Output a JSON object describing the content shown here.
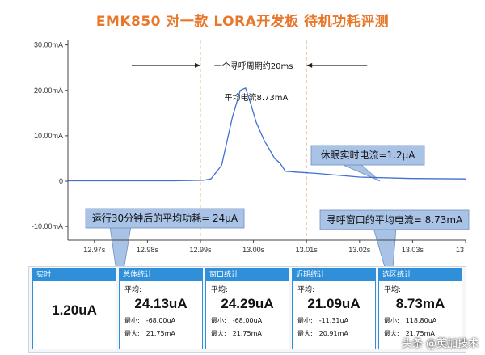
{
  "title": "EMK850 对一款 LORA开发板 待机功耗评测",
  "chart_data": {
    "type": "line",
    "title": "EMK850 对一款 LORA开发板 待机功耗评测",
    "xlabel": "",
    "ylabel": "",
    "xlim": [
      12.965,
      13.04
    ],
    "ylim": [
      -13,
      31
    ],
    "yticks": [
      30,
      20,
      10,
      0,
      -10
    ],
    "ytick_labels": [
      "30.00mA",
      "20.00mA",
      "10.00mA",
      "0",
      "-10.00mA"
    ],
    "xticks": [
      12.97,
      12.98,
      12.99,
      13.0,
      13.01,
      13.02,
      13.03,
      13.04
    ],
    "xtick_labels": [
      "12.97s",
      "12.98s",
      "12.99s",
      "13.00s",
      "13.01s",
      "13.02s",
      "13.03s",
      "13"
    ],
    "grid": false,
    "series": [
      {
        "name": "",
        "x": [
          12.965,
          12.975,
          12.985,
          12.9905,
          12.992,
          12.994,
          12.996,
          12.9975,
          12.9985,
          12.9995,
          13.0005,
          13.002,
          13.004,
          13.005,
          13.006,
          13.008,
          13.012,
          13.02,
          13.03,
          13.04
        ],
        "y": [
          0.1,
          0.1,
          0.1,
          0.2,
          0.5,
          3.5,
          14,
          20,
          20.5,
          17,
          13,
          9,
          5,
          4,
          2.2,
          2.0,
          1.7,
          0.9,
          0.6,
          0.5
        ]
      }
    ],
    "annotations": [
      {
        "text": "一个寻呼周期约20ms",
        "type": "span",
        "x": [
          12.99,
          13.01
        ]
      },
      {
        "text": "平均电流8.73mA",
        "type": "label",
        "x": 12.9945,
        "y": 17.8
      }
    ],
    "reference_lines": [
      12.99,
      13.01
    ]
  },
  "callouts": {
    "sleep": "休眠实时电流=1.2µA",
    "after30": "运行30分钟后的平均功耗= 24µA",
    "window": "寻呼窗口的平均电流= 8.73mA"
  },
  "panels": [
    {
      "head": "实时",
      "sub": "",
      "value": "1.20uA",
      "min_label": "",
      "min": "",
      "max_label": "",
      "max": ""
    },
    {
      "head": "总体统计",
      "sub": "平均:",
      "value": "24.13uA",
      "min_label": "最小:",
      "min": "-68.00uA",
      "max_label": "最大:",
      "max": "21.75mA"
    },
    {
      "head": "窗口统计",
      "sub": "平均:",
      "value": "24.29uA",
      "min_label": "最小:",
      "min": "-68.00uA",
      "max_label": "最大:",
      "max": "21.75mA"
    },
    {
      "head": "近期统计",
      "sub": "平均:",
      "value": "21.09uA",
      "min_label": "最小:",
      "min": "-11.31uA",
      "max_label": "最大:",
      "max": "20.91mA"
    },
    {
      "head": "选区统计",
      "sub": "平均:",
      "value": "8.73mA",
      "min_label": "最小:",
      "min": "118.80uA",
      "max_label": "最大:",
      "max": "21.75mA"
    }
  ],
  "colors": {
    "title": "#e8772a",
    "line": "#3f6fd0",
    "callout": "#a9c3e6",
    "panel_head": "#2f8fd8",
    "reference": "#e9b98a"
  },
  "watermark": "头条 @英加技术"
}
